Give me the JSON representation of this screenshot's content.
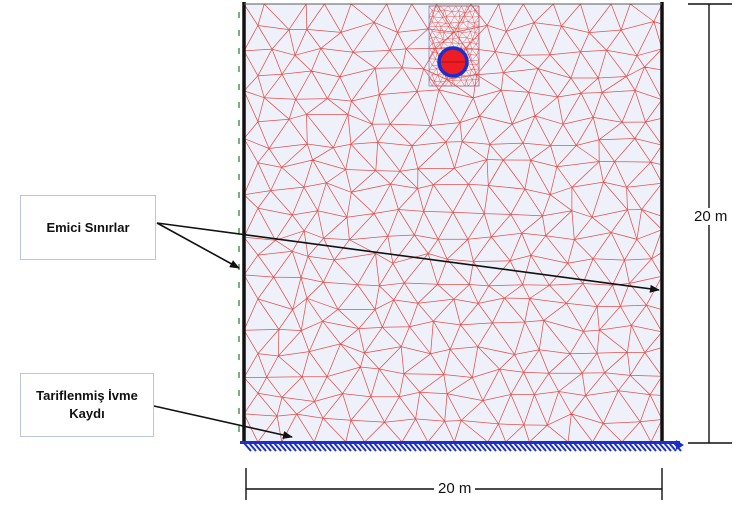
{
  "labels": {
    "absorbing_boundaries": "Emici Sınırlar",
    "prescribed_motion": "Tariflenmiş İvme Kaydı",
    "width_dimension": "20 m",
    "height_dimension": "20 m"
  },
  "colors": {
    "mesh_line": "#e0403a",
    "domain_fill": "#eef1fa",
    "boundary_line": "#111111",
    "base_hatch": "#1a2fcc",
    "tunnel_ring": "#1a2fcc",
    "tunnel_fill": "#ee1c24",
    "refine_box": "#7a86c8"
  }
}
